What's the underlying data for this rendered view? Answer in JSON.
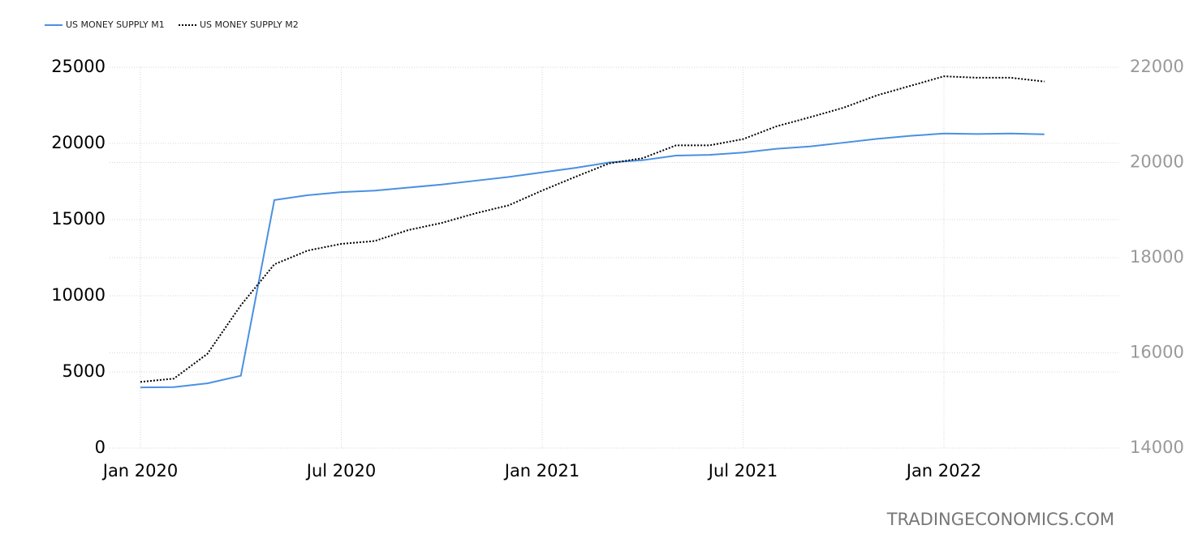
{
  "chart_data": {
    "type": "line",
    "x": [
      "2020-01",
      "2020-02",
      "2020-03",
      "2020-04",
      "2020-05",
      "2020-06",
      "2020-07",
      "2020-08",
      "2020-09",
      "2020-10",
      "2020-11",
      "2020-12",
      "2021-01",
      "2021-02",
      "2021-03",
      "2021-04",
      "2021-05",
      "2021-06",
      "2021-07",
      "2021-08",
      "2021-09",
      "2021-10",
      "2021-11",
      "2021-12",
      "2022-01",
      "2022-02",
      "2022-03",
      "2022-04"
    ],
    "series": [
      {
        "name": "US MONEY SUPPLY M1",
        "color": "#4a90e2",
        "style": "solid",
        "values": [
          3980,
          4000,
          4250,
          4750,
          16280,
          16600,
          16800,
          16900,
          17100,
          17300,
          17550,
          17800,
          18100,
          18400,
          18750,
          18900,
          19200,
          19250,
          19400,
          19650,
          19800,
          20050,
          20300,
          20500,
          20650,
          20620,
          20650,
          20600
        ]
      },
      {
        "name": "US MONEY SUPPLY M2",
        "color": "#000000",
        "style": "dotted",
        "axis": "y2",
        "values": [
          15390,
          15460,
          15980,
          17000,
          17860,
          18150,
          18290,
          18350,
          18580,
          18730,
          18930,
          19100,
          19410,
          19700,
          19980,
          20090,
          20360,
          20360,
          20490,
          20760,
          20950,
          21150,
          21410,
          21610,
          21810,
          21780,
          21780,
          21700
        ]
      }
    ],
    "xticks": [
      {
        "value": "2020-01",
        "label": "Jan 2020"
      },
      {
        "value": "2020-07",
        "label": "Jul 2020"
      },
      {
        "value": "2021-01",
        "label": "Jan 2021"
      },
      {
        "value": "2021-07",
        "label": "Jul 2021"
      },
      {
        "value": "2022-01",
        "label": "Jan 2022"
      }
    ],
    "ylim": [
      0,
      25000
    ],
    "yticks": [
      0,
      5000,
      10000,
      15000,
      20000,
      25000
    ],
    "y2lim": [
      14000,
      22000
    ],
    "y2ticks": [
      14000,
      16000,
      18000,
      20000,
      22000
    ],
    "grid": true,
    "legend": "top-left",
    "watermark": "TRADINGECONOMICS.COM"
  }
}
